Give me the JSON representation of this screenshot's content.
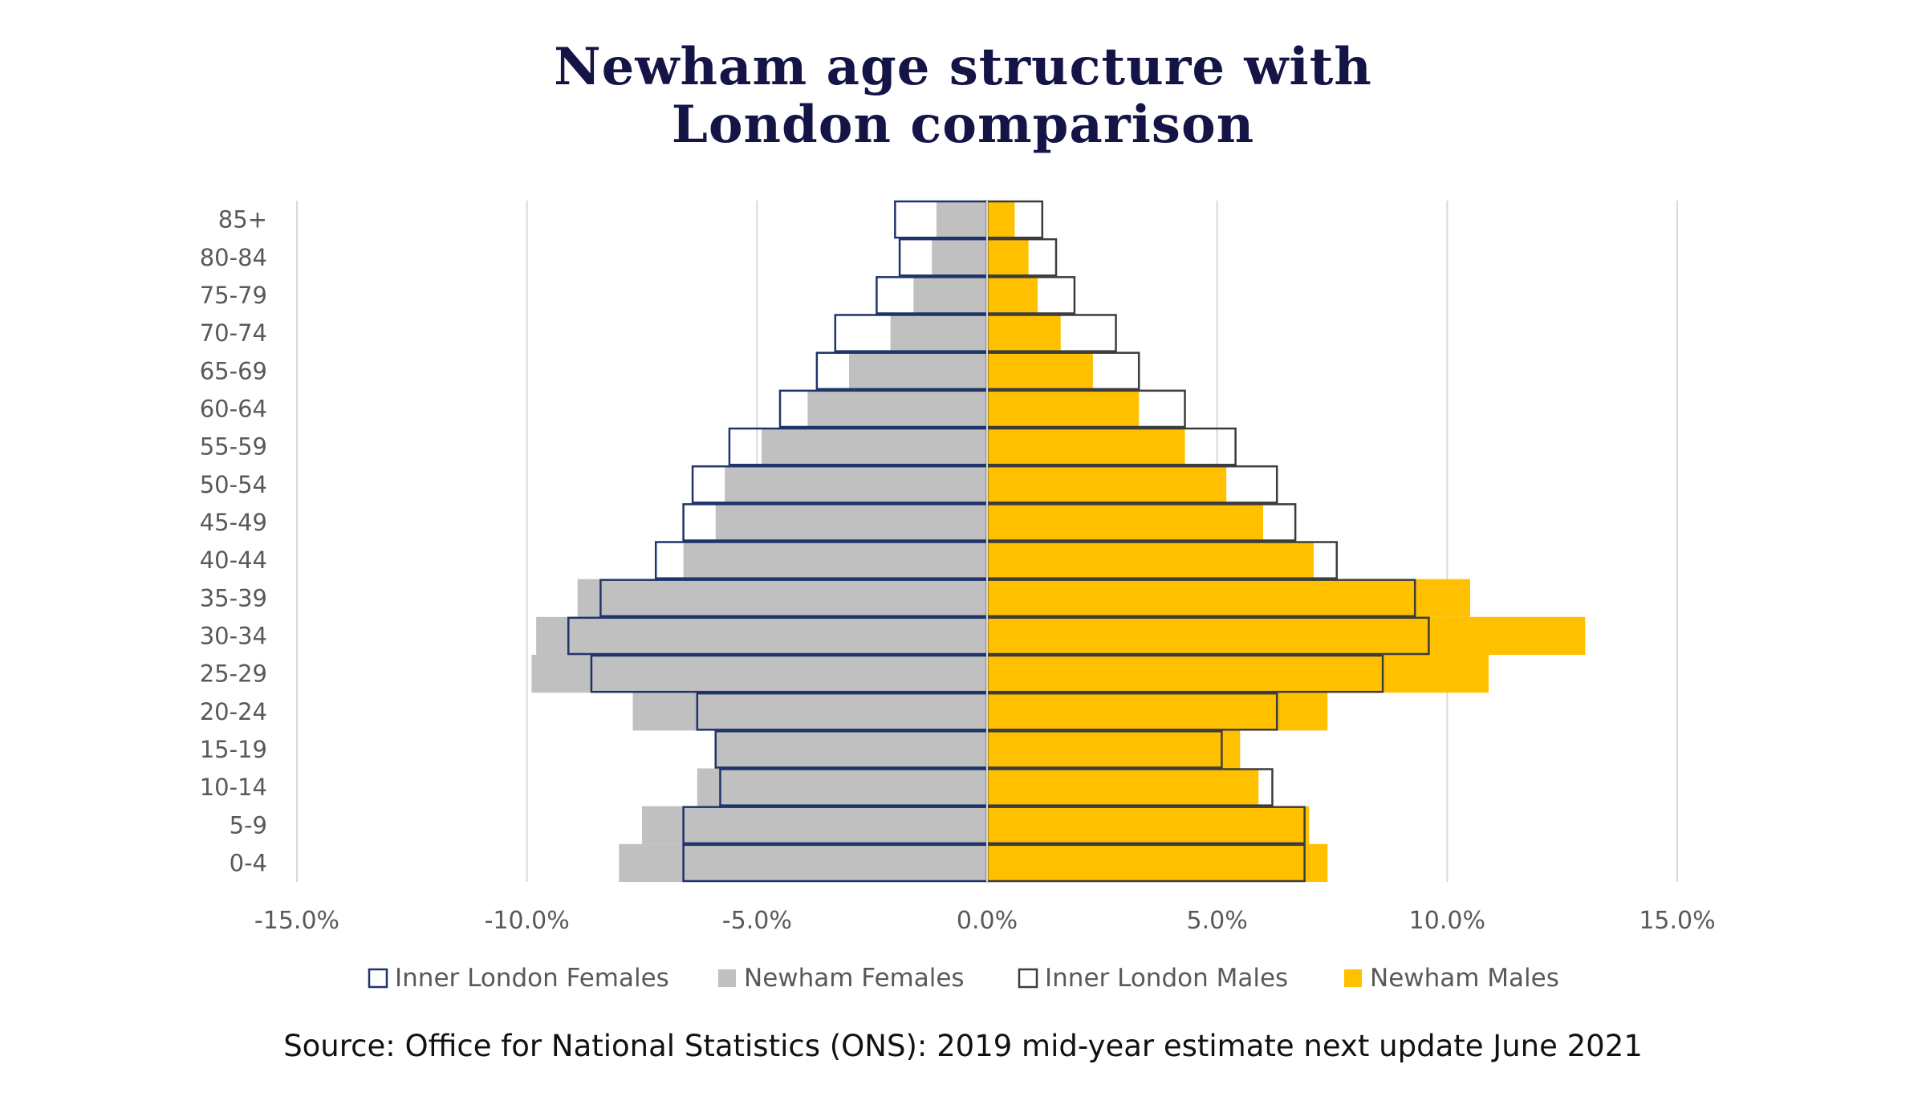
{
  "title": {
    "line1": "Newham age structure with",
    "line2": "London comparison"
  },
  "source": "Source: Office for National Statistics (ONS): 2019  mid-year estimate  next update June 2021",
  "colors": {
    "inner_london_females_outline": "#1f3469",
    "newham_females_fill": "#c0c0c0",
    "inner_london_males_outline": "#3c3c3c",
    "newham_males_fill": "#ffc000",
    "gridline": "#d9d9d9",
    "axis_text": "#595959",
    "axis_line": "#d9d9d9"
  },
  "chart_data": {
    "type": "bar",
    "orientation": "horizontal",
    "subtype": "population-pyramid",
    "categories": [
      "85+",
      "80-84",
      "75-79",
      "70-74",
      "65-69",
      "60-64",
      "55-59",
      "50-54",
      "45-49",
      "40-44",
      "35-39",
      "30-34",
      "25-29",
      "20-24",
      "15-19",
      "10-14",
      "5-9",
      "0-4"
    ],
    "series": [
      {
        "name": "Inner London Females",
        "style": "outline",
        "values": [
          -2.0,
          -1.9,
          -2.4,
          -3.3,
          -3.7,
          -4.5,
          -5.6,
          -6.4,
          -6.6,
          -7.2,
          -8.4,
          -9.1,
          -8.6,
          -6.3,
          -5.9,
          -5.8,
          -6.6,
          -6.6
        ]
      },
      {
        "name": "Newham Females",
        "style": "fill",
        "values": [
          -1.1,
          -1.2,
          -1.6,
          -2.1,
          -3.0,
          -3.9,
          -4.9,
          -5.7,
          -5.9,
          -6.6,
          -8.9,
          -9.8,
          -9.9,
          -7.7,
          -5.9,
          -6.3,
          -7.5,
          -8.0
        ]
      },
      {
        "name": "Inner London Males",
        "style": "outline",
        "values": [
          1.2,
          1.5,
          1.9,
          2.8,
          3.3,
          4.3,
          5.4,
          6.3,
          6.7,
          7.6,
          9.3,
          9.6,
          8.6,
          6.3,
          5.1,
          6.2,
          6.9,
          6.9
        ]
      },
      {
        "name": "Newham Males",
        "style": "fill",
        "values": [
          0.6,
          0.9,
          1.1,
          1.6,
          2.3,
          3.3,
          4.3,
          5.2,
          6.0,
          7.1,
          10.5,
          13.0,
          10.9,
          7.4,
          5.5,
          5.9,
          7.0,
          7.4
        ]
      }
    ],
    "x_ticks": [
      "-15.0%",
      "-10.0%",
      "-5.0%",
      "0.0%",
      "5.0%",
      "10.0%",
      "15.0%"
    ],
    "xlim": [
      -15,
      15
    ],
    "xlabel": "",
    "ylabel": "",
    "grid": "vertical",
    "legend": "bottom"
  }
}
